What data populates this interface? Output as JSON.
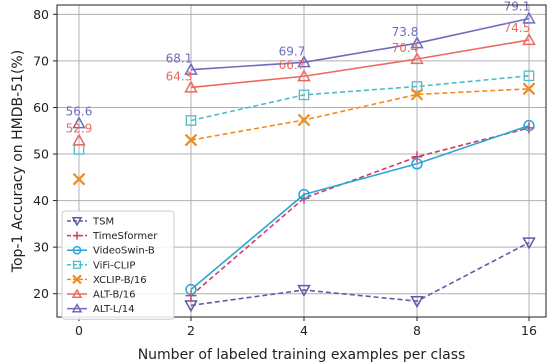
{
  "chart_data": {
    "type": "line",
    "xlabel": "Number of labeled training examples per class",
    "ylabel": "Top-1 Accuracy on HMDB-51(%)",
    "x_categories": [
      "0",
      "2",
      "4",
      "8",
      "16"
    ],
    "ylim": [
      15,
      82
    ],
    "yticks": [
      20,
      30,
      40,
      50,
      60,
      70,
      80
    ],
    "grid": true,
    "legend_position": "lower-left",
    "series": [
      {
        "name": "TSM",
        "color": "#5e5ba8",
        "dash": "dashed",
        "marker": "triangle-down",
        "values": [
          null,
          17.5,
          20.8,
          18.4,
          31.0
        ]
      },
      {
        "name": "TimeSformer",
        "color": "#cc3f6a",
        "dash": "dashed",
        "marker": "plus",
        "values": [
          null,
          19.6,
          40.5,
          49.4,
          55.6
        ]
      },
      {
        "name": "VideoSwin-B",
        "color": "#2aa6d6",
        "dash": "solid",
        "marker": "circle",
        "values": [
          null,
          20.9,
          41.3,
          47.9,
          56.1
        ]
      },
      {
        "name": "ViFi-CLIP",
        "color": "#4fbcc6",
        "dash": "dashed",
        "marker": "square",
        "values": [
          51.0,
          57.2,
          62.7,
          64.5,
          66.8
        ]
      },
      {
        "name": "XCLIP-B/16",
        "color": "#f08c1e",
        "dash": "dashed",
        "marker": "x",
        "values": [
          44.6,
          53.0,
          57.3,
          62.8,
          64.0
        ]
      },
      {
        "name": "ALT-B/16",
        "color": "#ee6a5e",
        "dash": "solid",
        "marker": "triangle-up",
        "values": [
          52.9,
          64.3,
          66.7,
          70.4,
          74.5
        ]
      },
      {
        "name": "ALT-L/14",
        "color": "#6f6cc0",
        "dash": "solid",
        "marker": "triangle-up",
        "values": [
          56.6,
          68.1,
          69.7,
          73.8,
          79.1
        ]
      }
    ],
    "annotations": [
      {
        "series": "ALT-L/14",
        "text": "56.6",
        "x": "0",
        "y": 56.6
      },
      {
        "series": "ALT-L/14",
        "text": "68.1",
        "x": "2",
        "y": 68.1
      },
      {
        "series": "ALT-L/14",
        "text": "69.7",
        "x": "4",
        "y": 69.7
      },
      {
        "series": "ALT-L/14",
        "text": "73.8",
        "x": "8",
        "y": 73.8
      },
      {
        "series": "ALT-L/14",
        "text": "79.1",
        "x": "16",
        "y": 79.1
      },
      {
        "series": "ALT-B/16",
        "text": "52.9",
        "x": "0",
        "y": 52.9
      },
      {
        "series": "ALT-B/16",
        "text": "64.3",
        "x": "2",
        "y": 64.3
      },
      {
        "series": "ALT-B/16",
        "text": "66.7",
        "x": "4",
        "y": 66.7
      },
      {
        "series": "ALT-B/16",
        "text": "70.4",
        "x": "8",
        "y": 70.4
      },
      {
        "series": "ALT-B/16",
        "text": "74.5",
        "x": "16",
        "y": 74.5
      }
    ]
  }
}
